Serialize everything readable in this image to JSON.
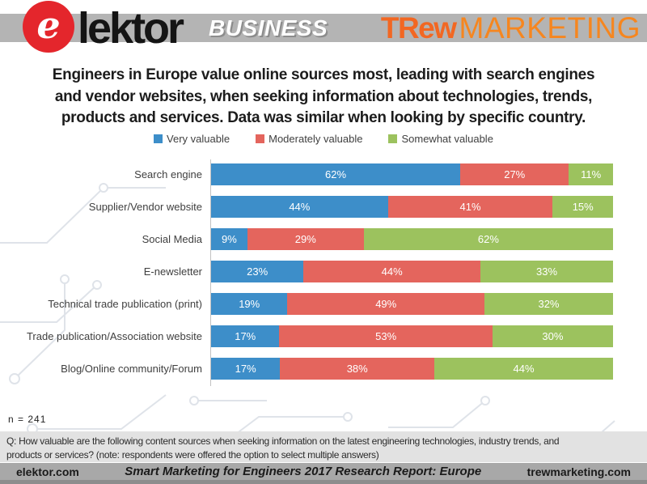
{
  "header": {
    "elektor": {
      "e_letter": "e",
      "wordmark": "lektor",
      "business_label": "BUSINESS"
    },
    "trew": {
      "brand_bold": "TRew",
      "brand_light": "MARKETING"
    }
  },
  "title_lines": [
    "Engineers in Europe value online sources most, leading with search engines",
    "and vendor websites, when seeking information about technologies, trends,",
    "products and services. Data was similar when looking by specific country."
  ],
  "chart_data": {
    "type": "bar",
    "orientation": "horizontal-stacked",
    "categories": [
      "Search engine",
      "Supplier/Vendor website",
      "Social Media",
      "E-newsletter",
      "Technical trade publication (print)",
      "Trade publication/Association website",
      "Blog/Online community/Forum"
    ],
    "series": [
      {
        "name": "Very valuable",
        "color": "#3d8ec9",
        "values": [
          62,
          44,
          9,
          23,
          19,
          17,
          17
        ]
      },
      {
        "name": "Moderately valuable",
        "color": "#e4655d",
        "values": [
          27,
          41,
          29,
          44,
          49,
          53,
          38
        ]
      },
      {
        "name": "Somewhat valuable",
        "color": "#9cc25e",
        "values": [
          11,
          15,
          62,
          33,
          32,
          30,
          44
        ]
      }
    ],
    "value_suffix": "%",
    "xlim": [
      0,
      100
    ],
    "grid": false,
    "legend_position": "top",
    "title": "",
    "xlabel": "",
    "ylabel": ""
  },
  "sample_note": "n  =  241",
  "question_lines": [
    "Q: How valuable are the following content sources when seeking information on the latest engineering technologies, industry trends, and",
    "products or services? (note: respondents were offered the option to select multiple answers)"
  ],
  "footer": {
    "left": "elektor.com",
    "center": "Smart Marketing for Engineers 2017 Research Report: Europe",
    "right": "trewmarketing.com"
  }
}
